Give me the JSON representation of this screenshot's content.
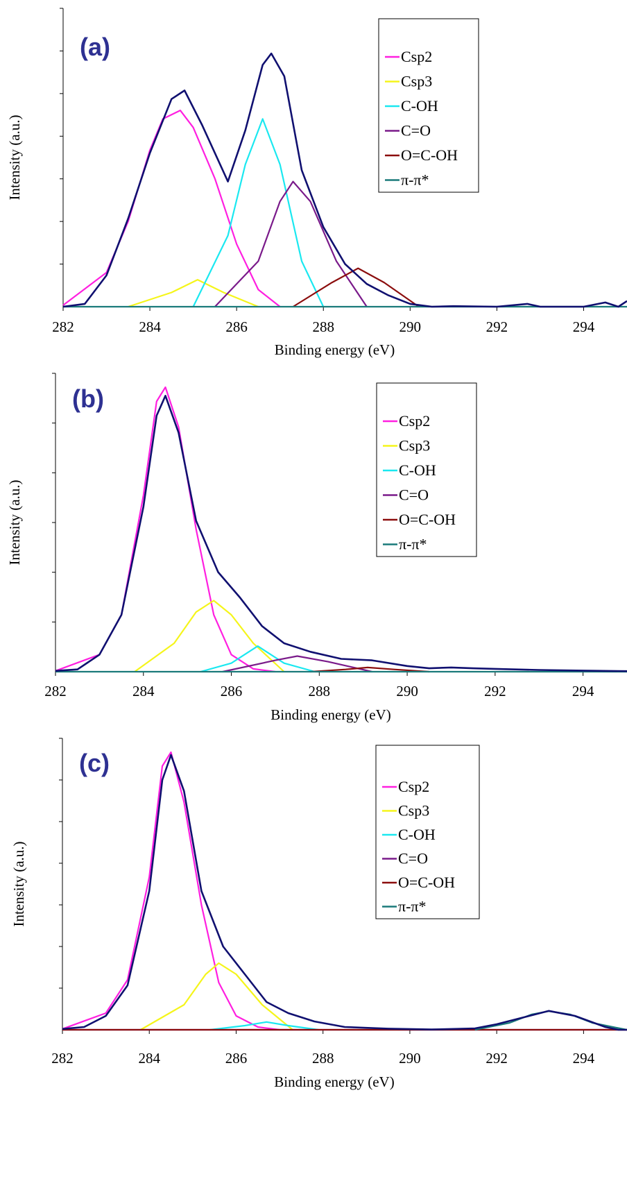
{
  "colors": {
    "Csp2": "#ff1fe0",
    "Csp3": "#f5f51a",
    "C-OH": "#1ae8f0",
    "C=O": "#7a1a8a",
    "O=C-OH": "#8b0d0d",
    "pi": "#1a7a7a",
    "envelope": "#101070",
    "panel_label": "#2e3192"
  },
  "chart_data": [
    {
      "type": "line",
      "panel": "(a)",
      "xlabel": "Binding energy (eV)",
      "ylabel": "Intensity (a.u.)",
      "xlim": [
        282,
        295
      ],
      "ylim": [
        0,
        1.0
      ],
      "xticks": [
        "282",
        "284",
        "286",
        "288",
        "290",
        "292",
        "294"
      ],
      "legend": [
        "Csp2",
        "Csp3",
        "C-OH",
        "C=O",
        "O=C-OH",
        "π-π*"
      ],
      "series": [
        {
          "name": "Csp2",
          "x": [
            282.0,
            283.0,
            283.5,
            284.0,
            284.3,
            284.7,
            285.0,
            285.5,
            286.0,
            286.5,
            287.0
          ],
          "y": [
            0.005,
            0.12,
            0.3,
            0.55,
            0.66,
            0.69,
            0.63,
            0.45,
            0.22,
            0.06,
            0.0
          ]
        },
        {
          "name": "Csp3",
          "x": [
            283.5,
            284.5,
            285.1,
            285.7,
            286.5
          ],
          "y": [
            0.0,
            0.05,
            0.095,
            0.05,
            0.0
          ]
        },
        {
          "name": "C-OH",
          "x": [
            285.0,
            285.8,
            286.2,
            286.6,
            287.0,
            287.5,
            288.0
          ],
          "y": [
            0.0,
            0.25,
            0.5,
            0.66,
            0.5,
            0.16,
            0.0
          ]
        },
        {
          "name": "C=O",
          "x": [
            285.5,
            286.5,
            287.0,
            287.3,
            287.7,
            288.3,
            289.0
          ],
          "y": [
            0.0,
            0.16,
            0.37,
            0.44,
            0.37,
            0.16,
            0.0
          ]
        },
        {
          "name": "O=C-OH",
          "x": [
            287.3,
            288.2,
            288.8,
            289.4,
            290.2
          ],
          "y": [
            0.0,
            0.085,
            0.135,
            0.085,
            0.0
          ]
        },
        {
          "name": "envelope",
          "x": [
            282.0,
            282.5,
            283.0,
            283.5,
            284.0,
            284.5,
            284.8,
            285.2,
            285.8,
            286.2,
            286.6,
            286.8,
            287.1,
            287.5,
            288.0,
            288.5,
            289.0,
            289.5,
            290.0,
            290.5,
            291.0,
            292.0,
            292.7,
            293.0,
            294.0,
            294.5,
            294.8,
            295.0
          ],
          "y": [
            0.0,
            0.01,
            0.11,
            0.31,
            0.54,
            0.73,
            0.76,
            0.64,
            0.44,
            0.62,
            0.85,
            0.89,
            0.81,
            0.48,
            0.28,
            0.15,
            0.08,
            0.04,
            0.01,
            0.0,
            0.002,
            0.0,
            0.01,
            0.0,
            0.0,
            0.015,
            0.0,
            0.02
          ]
        },
        {
          "name": "π-π*",
          "x": [
            282.0,
            295.0
          ],
          "y": [
            0.0,
            0.0
          ]
        }
      ]
    },
    {
      "type": "line",
      "panel": "(b)",
      "xlabel": "Binding energy (eV)",
      "ylabel": "Intensity (a.u.)",
      "xlim": [
        282,
        295
      ],
      "ylim": [
        0,
        1.0
      ],
      "xticks": [
        "282",
        "284",
        "286",
        "288",
        "290",
        "292",
        "294"
      ],
      "legend": [
        "Csp2",
        "Csp3",
        "C-OH",
        "C=O",
        "O=C-OH",
        "π-π*"
      ],
      "series": [
        {
          "name": "Csp2",
          "x": [
            282.0,
            283.0,
            283.5,
            284.0,
            284.3,
            284.5,
            284.8,
            285.2,
            285.6,
            286.0,
            286.5,
            287.0
          ],
          "y": [
            0.003,
            0.06,
            0.2,
            0.62,
            0.95,
            1.0,
            0.86,
            0.5,
            0.2,
            0.06,
            0.01,
            0.0
          ]
        },
        {
          "name": "Csp3",
          "x": [
            283.8,
            284.7,
            285.2,
            285.6,
            286.0,
            286.5,
            287.2
          ],
          "y": [
            0.0,
            0.1,
            0.21,
            0.25,
            0.2,
            0.1,
            0.0
          ]
        },
        {
          "name": "C-OH",
          "x": [
            285.3,
            286.0,
            286.6,
            287.2,
            287.9
          ],
          "y": [
            0.0,
            0.03,
            0.09,
            0.03,
            0.0
          ]
        },
        {
          "name": "C=O",
          "x": [
            285.8,
            287.0,
            287.5,
            288.2,
            289.2
          ],
          "y": [
            0.0,
            0.04,
            0.055,
            0.035,
            0.0
          ]
        },
        {
          "name": "O=C-OH",
          "x": [
            287.8,
            288.6,
            289.1,
            289.7,
            290.5
          ],
          "y": [
            0.0,
            0.008,
            0.015,
            0.008,
            0.0
          ]
        },
        {
          "name": "envelope",
          "x": [
            282.0,
            282.5,
            283.0,
            283.5,
            284.0,
            284.3,
            284.5,
            284.8,
            285.2,
            285.7,
            286.2,
            286.7,
            287.2,
            287.8,
            288.5,
            289.2,
            290.0,
            290.5,
            291.0,
            291.5,
            292.0,
            293.0,
            294.0,
            295.0
          ],
          "y": [
            0.003,
            0.008,
            0.06,
            0.2,
            0.58,
            0.9,
            0.97,
            0.84,
            0.53,
            0.35,
            0.26,
            0.16,
            0.1,
            0.07,
            0.045,
            0.04,
            0.02,
            0.012,
            0.015,
            0.012,
            0.01,
            0.006,
            0.004,
            0.002
          ]
        },
        {
          "name": "π-π*",
          "x": [
            282.0,
            295.0
          ],
          "y": [
            0.0,
            0.0
          ]
        }
      ]
    },
    {
      "type": "line",
      "panel": "(c)",
      "xlabel": "Binding energy (eV)",
      "ylabel": "Intensity (a.u.)",
      "xlim": [
        282,
        295
      ],
      "ylim": [
        0,
        1.0
      ],
      "xticks": [
        "282",
        "284",
        "286",
        "288",
        "290",
        "292",
        "294"
      ],
      "legend": [
        "Csp2",
        "Csp3",
        "C-OH",
        "C=O",
        "O=C-OH",
        "π-π*"
      ],
      "series": [
        {
          "name": "Csp2",
          "x": [
            282.0,
            283.0,
            283.5,
            284.0,
            284.3,
            284.5,
            284.8,
            285.2,
            285.6,
            286.0,
            286.5,
            287.0
          ],
          "y": [
            0.003,
            0.06,
            0.18,
            0.55,
            0.95,
            1.0,
            0.82,
            0.45,
            0.17,
            0.05,
            0.01,
            0.0
          ]
        },
        {
          "name": "Csp3",
          "x": [
            283.8,
            284.8,
            285.3,
            285.6,
            286.0,
            286.6,
            287.3
          ],
          "y": [
            0.0,
            0.09,
            0.2,
            0.24,
            0.2,
            0.09,
            0.0
          ]
        },
        {
          "name": "C-OH",
          "x": [
            285.4,
            286.2,
            286.7,
            287.2,
            287.9
          ],
          "y": [
            0.0,
            0.015,
            0.028,
            0.015,
            0.0
          ]
        },
        {
          "name": "C=O",
          "x": [
            282.0,
            295.0
          ],
          "y": [
            0.0,
            0.0
          ]
        },
        {
          "name": "O=C-OH",
          "x": [
            282.0,
            295.0
          ],
          "y": [
            0.0,
            0.0
          ]
        },
        {
          "name": "π-π*",
          "x": [
            291.5,
            292.3,
            292.8,
            293.2,
            293.7,
            294.2,
            295.0
          ],
          "y": [
            0.0,
            0.025,
            0.055,
            0.067,
            0.055,
            0.025,
            0.0
          ]
        },
        {
          "name": "envelope",
          "x": [
            282.0,
            282.5,
            283.0,
            283.5,
            284.0,
            284.3,
            284.5,
            284.8,
            285.2,
            285.7,
            286.2,
            286.7,
            287.2,
            287.8,
            288.5,
            289.5,
            290.5,
            291.5,
            292.0,
            292.5,
            293.2,
            293.8,
            294.5,
            294.8,
            295.0
          ],
          "y": [
            0.003,
            0.01,
            0.05,
            0.16,
            0.5,
            0.9,
            0.99,
            0.86,
            0.5,
            0.3,
            0.2,
            0.1,
            0.06,
            0.03,
            0.01,
            0.004,
            0.001,
            0.005,
            0.02,
            0.04,
            0.068,
            0.05,
            0.01,
            0.0,
            0.0
          ]
        }
      ]
    }
  ]
}
